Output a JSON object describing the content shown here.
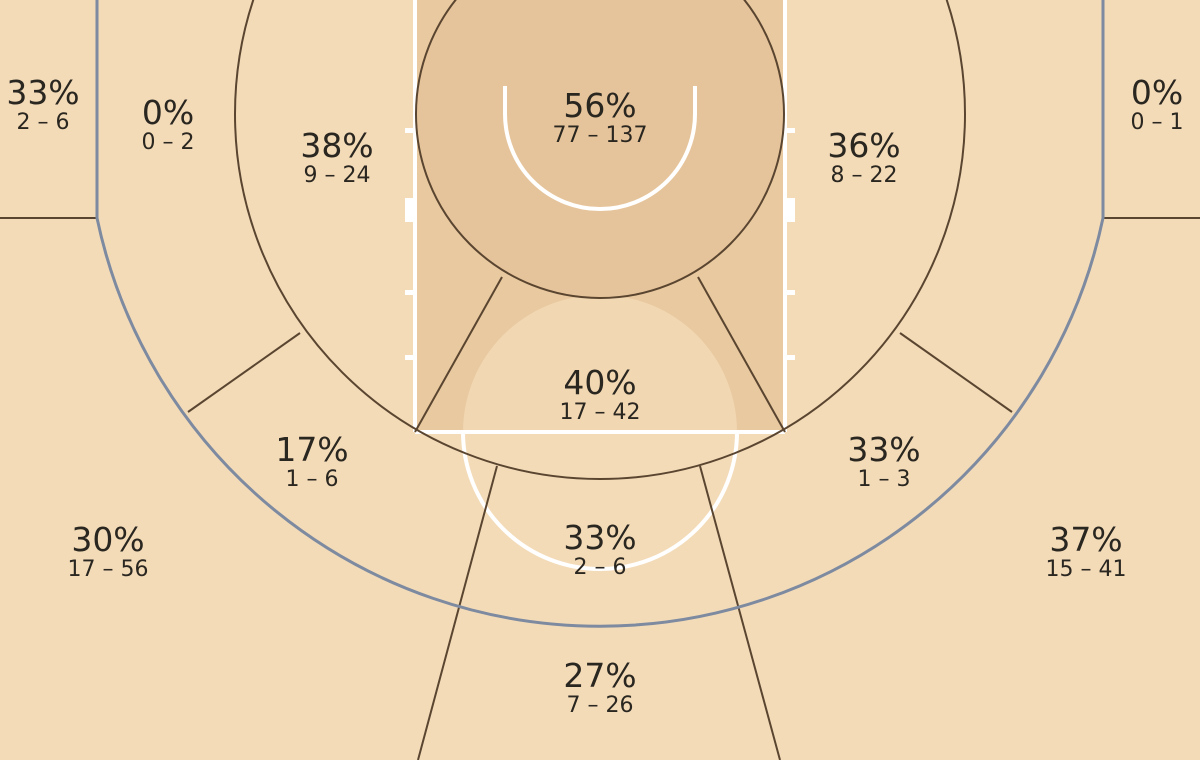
{
  "chart_data": {
    "type": "shot-chart",
    "colors": {
      "floor": "#f3dbb8",
      "paint": "#e9c9a0",
      "zone_lines": "#5a4530",
      "three_point_line": "#7d8aa0",
      "court_lines": "#ffffff"
    },
    "zones": [
      {
        "id": "left-corner-three",
        "pct": "33%",
        "made_attempts": "2 – 6"
      },
      {
        "id": "left-baseline-mid",
        "pct": "0%",
        "made_attempts": "0 – 2"
      },
      {
        "id": "left-short-mid",
        "pct": "38%",
        "made_attempts": "9 – 24"
      },
      {
        "id": "restricted-area",
        "pct": "56%",
        "made_attempts": "77 – 137"
      },
      {
        "id": "right-short-mid",
        "pct": "36%",
        "made_attempts": "8 – 22"
      },
      {
        "id": "right-corner-three",
        "pct": "0%",
        "made_attempts": "0 – 1"
      },
      {
        "id": "paint-non-ra",
        "pct": "40%",
        "made_attempts": "17 – 42"
      },
      {
        "id": "left-wing-mid",
        "pct": "17%",
        "made_attempts": "1 – 6"
      },
      {
        "id": "right-wing-mid",
        "pct": "33%",
        "made_attempts": "1 – 3"
      },
      {
        "id": "top-key-mid",
        "pct": "33%",
        "made_attempts": "2 – 6"
      },
      {
        "id": "left-wing-three",
        "pct": "30%",
        "made_attempts": "17 – 56"
      },
      {
        "id": "right-wing-three",
        "pct": "37%",
        "made_attempts": "15 – 41"
      },
      {
        "id": "top-three",
        "pct": "27%",
        "made_attempts": "7 – 26"
      }
    ]
  }
}
